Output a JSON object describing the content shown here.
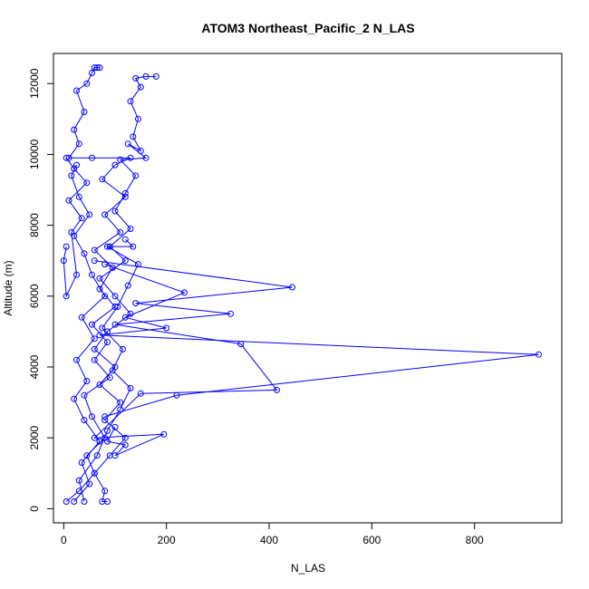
{
  "chart_data": {
    "type": "line",
    "title": "ATOM3 Northeast_Pacific_2 N_LAS",
    "xlabel": "N_LAS",
    "ylabel": "Altitude (m)",
    "xlim": [
      -20,
      970
    ],
    "ylim": [
      -400,
      12850
    ],
    "xticks": [
      0,
      200,
      400,
      600,
      800
    ],
    "yticks": [
      0,
      2000,
      4000,
      6000,
      8000,
      10000,
      12000
    ],
    "grid": false,
    "legend": "none",
    "marker": "open-circle",
    "color": "#0000ff",
    "series": [
      {
        "values": [
          [
            5,
            200
          ],
          [
            30,
            500
          ],
          [
            60,
            1000
          ],
          [
            45,
            1500
          ],
          [
            80,
            2000
          ],
          [
            55,
            2600
          ],
          [
            40,
            3200
          ],
          [
            90,
            3700
          ],
          [
            60,
            4200
          ],
          [
            85,
            4700
          ],
          [
            55,
            5200
          ],
          [
            100,
            5700
          ],
          [
            70,
            6200
          ],
          [
            95,
            6800
          ],
          [
            60,
            7300
          ],
          [
            110,
            7800
          ],
          [
            80,
            8300
          ],
          [
            120,
            8800
          ],
          [
            75,
            9300
          ],
          [
            100,
            9700
          ],
          [
            130,
            9900
          ],
          [
            55,
            9900
          ],
          [
            10,
            9900
          ],
          [
            30,
            10300
          ],
          [
            20,
            10700
          ],
          [
            40,
            11200
          ],
          [
            25,
            11800
          ],
          [
            45,
            12000
          ],
          [
            55,
            12300
          ],
          [
            60,
            12450
          ],
          [
            65,
            12450
          ],
          [
            70,
            12450
          ]
        ]
      },
      {
        "values": [
          [
            180,
            12200
          ],
          [
            160,
            12200
          ],
          [
            140,
            12150
          ],
          [
            150,
            11900
          ],
          [
            130,
            11500
          ],
          [
            145,
            11000
          ],
          [
            135,
            10500
          ],
          [
            150,
            10100
          ],
          [
            125,
            10300
          ],
          [
            160,
            9900
          ],
          [
            110,
            9850
          ],
          [
            140,
            9400
          ],
          [
            120,
            8900
          ],
          [
            100,
            8400
          ],
          [
            130,
            7900
          ],
          [
            90,
            7400
          ],
          [
            120,
            7000
          ],
          [
            70,
            6500
          ],
          [
            100,
            6000
          ],
          [
            130,
            5500
          ],
          [
            85,
            5000
          ],
          [
            60,
            4500
          ],
          [
            100,
            4000
          ],
          [
            70,
            3500
          ],
          [
            110,
            3000
          ],
          [
            80,
            2500
          ],
          [
            120,
            2000
          ],
          [
            90,
            1500
          ],
          [
            60,
            1000
          ],
          [
            80,
            500
          ],
          [
            75,
            200
          ],
          [
            85,
            200
          ]
        ]
      },
      {
        "values": [
          [
            20,
            200
          ],
          [
            50,
            700
          ],
          [
            35,
            1300
          ],
          [
            70,
            1900
          ],
          [
            40,
            2500
          ],
          [
            20,
            3100
          ],
          [
            45,
            3600
          ],
          [
            25,
            4200
          ],
          [
            60,
            4800
          ],
          [
            35,
            5400
          ],
          [
            80,
            6000
          ],
          [
            55,
            6600
          ],
          [
            40,
            7200
          ],
          [
            20,
            7700
          ],
          [
            50,
            8300
          ],
          [
            30,
            8800
          ],
          [
            15,
            9400
          ],
          [
            25,
            9700
          ]
        ]
      },
      {
        "values": [
          [
            40,
            200
          ],
          [
            30,
            800
          ],
          [
            65,
            1500
          ],
          [
            85,
            2200
          ],
          [
            110,
            2800
          ],
          [
            130,
            3400
          ],
          [
            95,
            3900
          ],
          [
            115,
            4500
          ],
          [
            75,
            5100
          ],
          [
            105,
            5700
          ],
          [
            125,
            6300
          ],
          [
            145,
            6900
          ],
          [
            85,
            7400
          ],
          [
            135,
            7400
          ],
          [
            120,
            7600
          ]
        ]
      },
      {
        "values": [
          [
            60,
            7000
          ],
          [
            445,
            6250
          ],
          [
            140,
            5800
          ],
          [
            325,
            5500
          ],
          [
            100,
            5200
          ],
          [
            345,
            4650
          ],
          [
            415,
            3350
          ],
          [
            150,
            3250
          ],
          [
            60,
            2000
          ],
          [
            195,
            2100
          ],
          [
            100,
            1500
          ],
          [
            120,
            1800
          ],
          [
            85,
            1900
          ],
          [
            100,
            2300
          ]
        ]
      },
      {
        "values": [
          [
            80,
            6900
          ],
          [
            235,
            6100
          ],
          [
            120,
            5400
          ],
          [
            200,
            5100
          ],
          [
            70,
            4900
          ],
          [
            925,
            4350
          ],
          [
            220,
            3200
          ],
          [
            80,
            2600
          ]
        ]
      },
      {
        "values": [
          [
            5,
            7400
          ],
          [
            0,
            7000
          ],
          [
            5,
            6000
          ],
          [
            25,
            6600
          ],
          [
            15,
            7800
          ],
          [
            35,
            8200
          ],
          [
            10,
            8700
          ],
          [
            45,
            9200
          ],
          [
            20,
            9600
          ],
          [
            5,
            9900
          ]
        ]
      }
    ]
  }
}
